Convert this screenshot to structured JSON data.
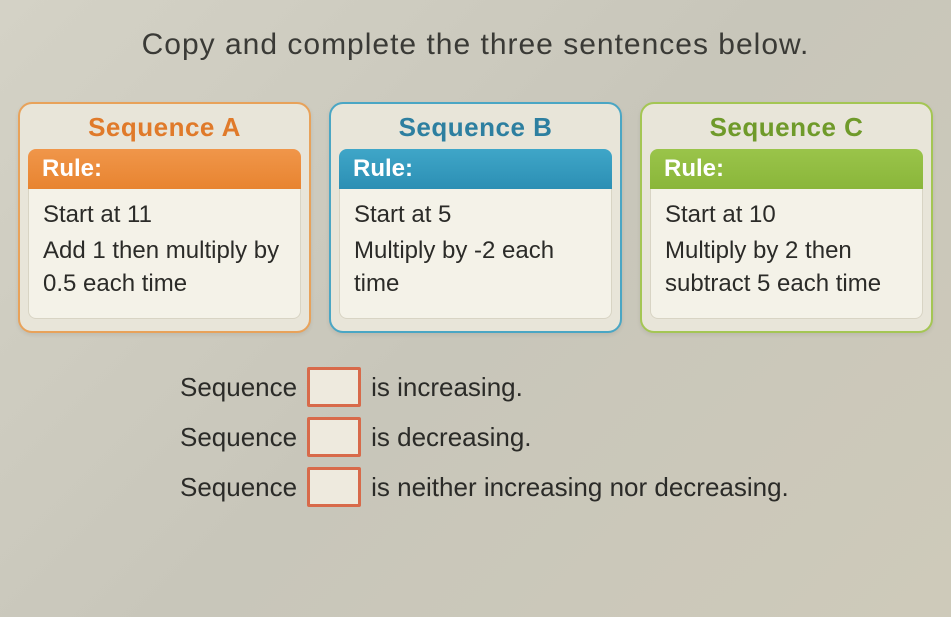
{
  "instruction": "Copy and complete the three sentences below.",
  "cards": {
    "a": {
      "title": "Sequence A",
      "rule_label": "Rule:",
      "line1": "Start at 11",
      "line2": "Add 1 then multiply by 0.5 each time",
      "title_color": "#e07a2a",
      "bar_color": "#e88430",
      "border_color": "#e8a25a"
    },
    "b": {
      "title": "Sequence B",
      "rule_label": "Rule:",
      "line1": "Start at 5",
      "line2": "Multiply by -2 each time",
      "title_color": "#2d7fa0",
      "bar_color": "#2c8fb4",
      "border_color": "#4aa6c4"
    },
    "c": {
      "title": "Sequence C",
      "rule_label": "Rule:",
      "line1": "Start at 10",
      "line2": "Multiply by 2 then subtract 5 each time",
      "title_color": "#6f9a2a",
      "bar_color": "#8ab63a",
      "border_color": "#a4c654"
    }
  },
  "sentences": {
    "prefix": "Sequence",
    "s1_suffix": "is increasing.",
    "s2_suffix": "is decreasing.",
    "s3_suffix": "is neither increasing nor decreasing.",
    "blank_border_color": "#d86a4a",
    "blank_bg_color": "#eeeade"
  },
  "colors": {
    "page_bg": "#d4d2c6",
    "text": "#2b2b28",
    "card_bg": "#e8e5d9",
    "rule_body_bg": "#f4f2e8"
  },
  "typography": {
    "instruction_fontsize": 30,
    "card_title_fontsize": 26,
    "rule_label_fontsize": 24,
    "rule_body_fontsize": 24,
    "sentence_fontsize": 26
  }
}
